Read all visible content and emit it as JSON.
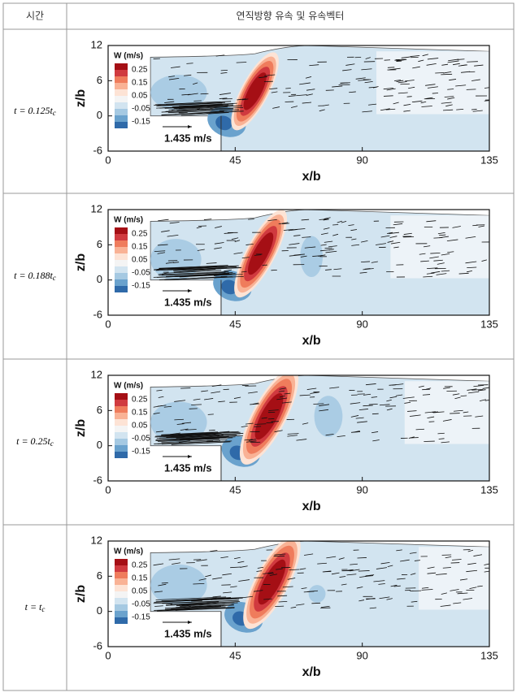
{
  "table": {
    "header": [
      "시간",
      "연직방향 유속 및 유속벡터"
    ],
    "colormap": [
      "#a50f15",
      "#d03a3f",
      "#ef7c5c",
      "#f9b295",
      "#fde3d5",
      "#f4f4f4",
      "#d2e4f0",
      "#a5c9e2",
      "#6aa2cd",
      "#2f6aa9"
    ],
    "rows": [
      {
        "time": {
          "main": "t = 0.125t",
          "sub": "c"
        },
        "plot": {
          "xlabel": "x/b",
          "ylabel": "z/b",
          "xlim": [
            0,
            135
          ],
          "ylim": [
            -6,
            12
          ],
          "xticks": [
            0,
            45,
            90,
            135
          ],
          "yticks": [
            -6,
            0,
            6,
            12
          ],
          "legend_title": "W (m/s)",
          "legend_levels": [
            0.25,
            0.15,
            0.05,
            -0.05,
            -0.15
          ],
          "reference_vector": "1.435 m/s"
        }
      },
      {
        "time": {
          "main": "t = 0.188t",
          "sub": "c"
        },
        "plot": {
          "xlabel": "x/b",
          "ylabel": "z/b",
          "xlim": [
            0,
            135
          ],
          "ylim": [
            -6,
            12
          ],
          "xticks": [
            0,
            45,
            90,
            135
          ],
          "yticks": [
            -6,
            0,
            6,
            12
          ],
          "legend_title": "W (m/s)",
          "legend_levels": [
            0.25,
            0.15,
            0.05,
            -0.05,
            -0.15
          ],
          "reference_vector": "1.435 m/s"
        }
      },
      {
        "time": {
          "main": "t = 0.25t",
          "sub": "c"
        },
        "plot": {
          "xlabel": "x/b",
          "ylabel": "z/b",
          "xlim": [
            0,
            135
          ],
          "ylim": [
            -6,
            12
          ],
          "xticks": [
            0,
            45,
            90,
            135
          ],
          "yticks": [
            -6,
            0,
            6,
            12
          ],
          "legend_title": "W (m/s)",
          "legend_levels": [
            0.25,
            0.15,
            0.05,
            -0.05,
            -0.15
          ],
          "reference_vector": "1.435 m/s"
        }
      },
      {
        "time": {
          "main": "t = t",
          "sub": "c"
        },
        "plot": {
          "xlabel": "x/b",
          "ylabel": "z/b",
          "xlim": [
            0,
            135
          ],
          "ylim": [
            -6,
            12
          ],
          "xticks": [
            0,
            45,
            90,
            135
          ],
          "yticks": [
            -6,
            0,
            6,
            12
          ],
          "legend_title": "W (m/s)",
          "legend_levels": [
            0.25,
            0.15,
            0.05,
            -0.05,
            -0.15
          ],
          "reference_vector": "1.435 m/s"
        }
      }
    ]
  }
}
